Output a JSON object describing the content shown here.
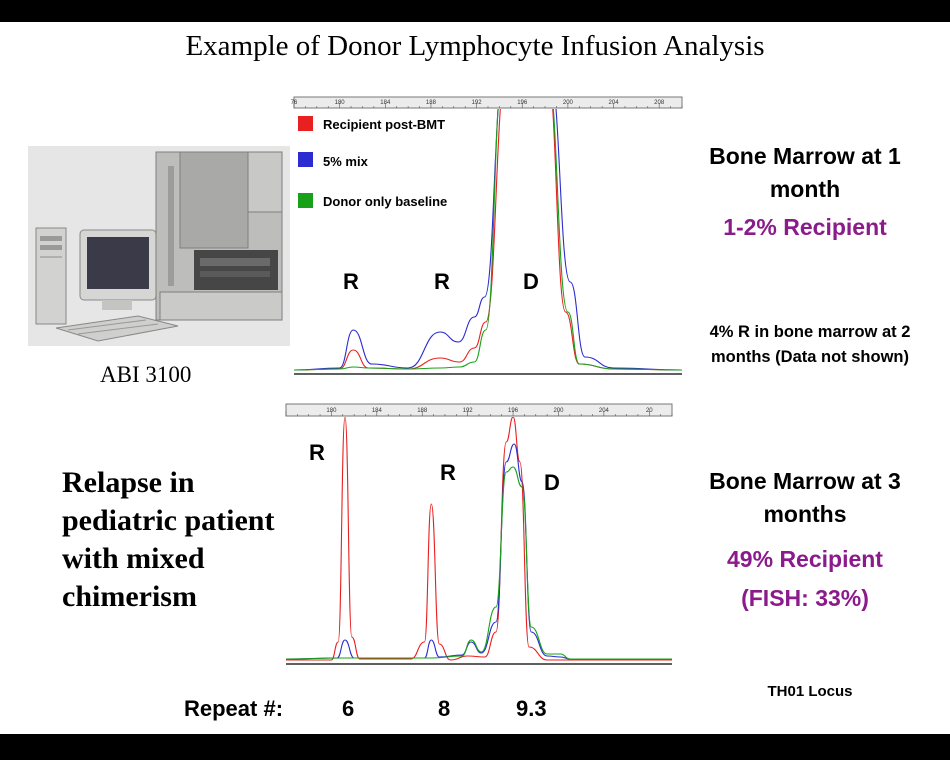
{
  "slide": {
    "title": "Example of Donor Lymphocyte Infusion Analysis",
    "instrument_caption": "ABI 3100",
    "relapse_text": "Relapse in pediatric patient with mixed chimerism",
    "bone_marrow_1": "Bone Marrow at 1 month",
    "recipient_1": "1-2% Recipient",
    "note_2_months": "4% R in bone marrow at 2 months (Data not shown)",
    "bone_marrow_3": "Bone Marrow at 3 months",
    "recipient_3": "49% Recipient",
    "fish": "(FISH: 33%)",
    "locus": "TH01 Locus",
    "repeat_label": "Repeat #:",
    "repeat_values": [
      "6",
      "8",
      "9.3"
    ]
  },
  "colors": {
    "recipient": "#e82020",
    "mix": "#2b2bd0",
    "donor": "#18a018",
    "accent": "#8b1a8b"
  },
  "chart_data": [
    {
      "type": "line",
      "xlim": [
        176,
        210
      ],
      "ticks": [
        "76",
        "180",
        "184",
        "188",
        "192",
        "196",
        "200",
        "204",
        "208"
      ],
      "legend": [
        "Recipient post-BMT",
        "5% mix",
        "Donor only baseline"
      ],
      "peak_labels": [
        "R",
        "R",
        "D"
      ],
      "series": [
        {
          "name": "Recipient post-BMT",
          "points": [
            [
              176,
              2
            ],
            [
              180,
              3
            ],
            [
              181.2,
              22
            ],
            [
              182.5,
              4
            ],
            [
              186,
              3
            ],
            [
              188.8,
              14
            ],
            [
              190.5,
              10
            ],
            [
              191.8,
              24
            ],
            [
              192.8,
              50
            ],
            [
              194.6,
              300
            ],
            [
              198.2,
              300
            ],
            [
              199.8,
              60
            ],
            [
              201,
              8
            ],
            [
              204,
              3
            ],
            [
              210,
              2
            ]
          ]
        },
        {
          "name": "5% mix",
          "points": [
            [
              176,
              2
            ],
            [
              180,
              4
            ],
            [
              181.2,
              42
            ],
            [
              182.8,
              8
            ],
            [
              186,
              4
            ],
            [
              188.8,
              40
            ],
            [
              190.4,
              30
            ],
            [
              191.8,
              55
            ],
            [
              192.7,
              75
            ],
            [
              194.4,
              300
            ],
            [
              198.4,
              300
            ],
            [
              200.2,
              90
            ],
            [
              201.5,
              15
            ],
            [
              204,
              4
            ],
            [
              210,
              2
            ]
          ]
        },
        {
          "name": "Donor only baseline",
          "points": [
            [
              176,
              2
            ],
            [
              180,
              3
            ],
            [
              181.2,
              5
            ],
            [
              182.5,
              4
            ],
            [
              186,
              3
            ],
            [
              188.8,
              4
            ],
            [
              190.5,
              5
            ],
            [
              191.8,
              10
            ],
            [
              192.8,
              42
            ],
            [
              194.3,
              300
            ],
            [
              198.2,
              300
            ],
            [
              200,
              60
            ],
            [
              201,
              8
            ],
            [
              204,
              3
            ],
            [
              210,
              2
            ]
          ]
        }
      ]
    },
    {
      "type": "line",
      "xlim": [
        176,
        210
      ],
      "ticks": [
        "180",
        "184",
        "188",
        "192",
        "196",
        "200",
        "204",
        "20"
      ],
      "peak_labels": [
        "R",
        "R",
        "D"
      ],
      "series": [
        {
          "name": "Recipient",
          "points": [
            [
              176,
              2
            ],
            [
              180,
              2
            ],
            [
              180.6,
              20
            ],
            [
              181.2,
              245
            ],
            [
              181.8,
              25
            ],
            [
              182.5,
              3
            ],
            [
              187,
              3
            ],
            [
              188.2,
              20
            ],
            [
              188.8,
              158
            ],
            [
              189.5,
              18
            ],
            [
              190.5,
              2
            ],
            [
              192,
              6
            ],
            [
              193.5,
              5
            ],
            [
              194.5,
              30
            ],
            [
              195.4,
              220
            ],
            [
              196,
              245
            ],
            [
              196.6,
              200
            ],
            [
              197.4,
              15
            ],
            [
              199,
              2
            ],
            [
              210,
              2
            ]
          ]
        },
        {
          "name": "5% mix",
          "points": [
            [
              176,
              3
            ],
            [
              180.5,
              4
            ],
            [
              181.2,
              22
            ],
            [
              182,
              4
            ],
            [
              188.2,
              4
            ],
            [
              188.8,
              22
            ],
            [
              189.5,
              5
            ],
            [
              191.5,
              7
            ],
            [
              192.3,
              20
            ],
            [
              193.2,
              9
            ],
            [
              194.5,
              40
            ],
            [
              195.4,
              200
            ],
            [
              196.1,
              218
            ],
            [
              196.8,
              180
            ],
            [
              197.6,
              30
            ],
            [
              199,
              6
            ],
            [
              200.2,
              5
            ],
            [
              201,
              3
            ],
            [
              210,
              3
            ]
          ]
        },
        {
          "name": "Donor only baseline",
          "points": [
            [
              176,
              3
            ],
            [
              181.2,
              4
            ],
            [
              188.8,
              4
            ],
            [
              191.5,
              6
            ],
            [
              192.3,
              22
            ],
            [
              193.2,
              10
            ],
            [
              194.5,
              55
            ],
            [
              195.4,
              190
            ],
            [
              196,
              195
            ],
            [
              196.8,
              175
            ],
            [
              197.6,
              35
            ],
            [
              199,
              8
            ],
            [
              200.2,
              8
            ],
            [
              201,
              3
            ],
            [
              210,
              3
            ]
          ]
        }
      ]
    }
  ]
}
